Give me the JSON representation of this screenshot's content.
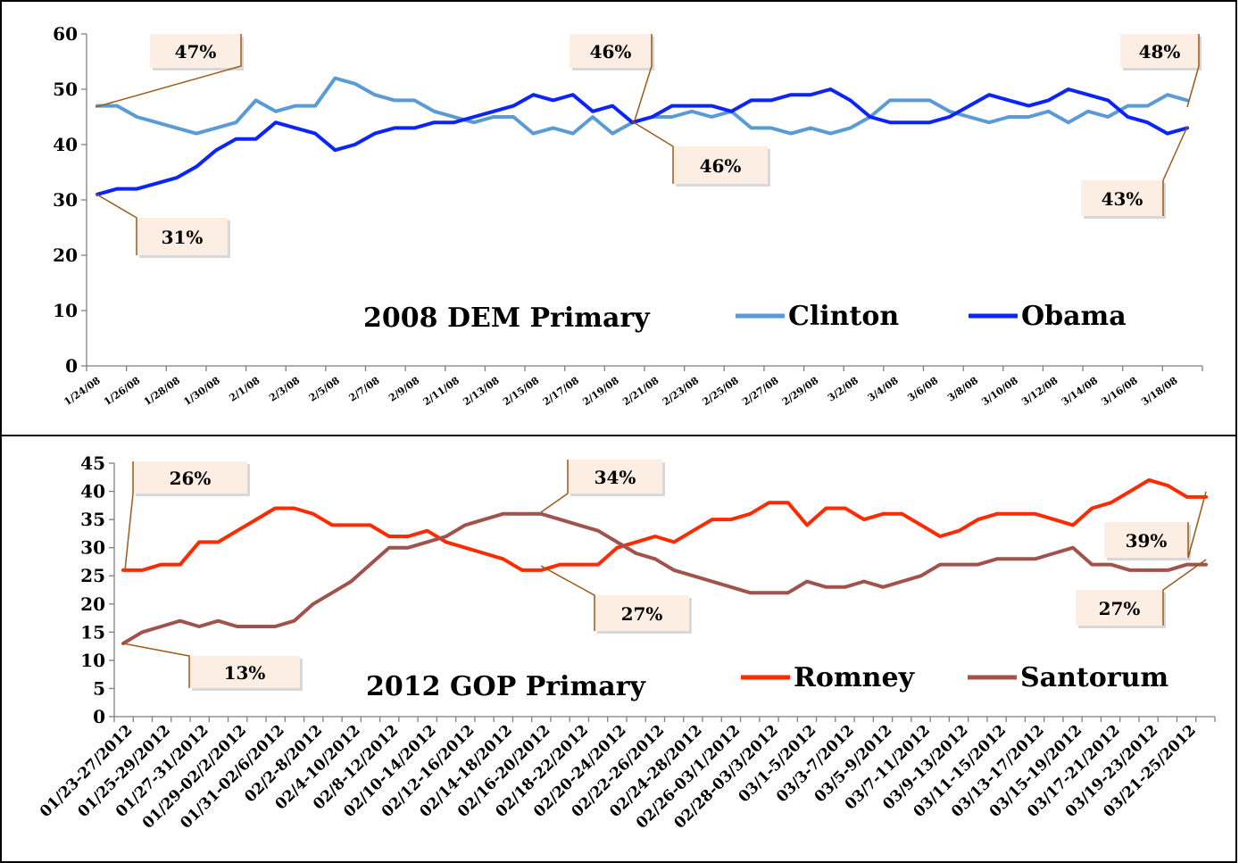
{
  "chart_data": [
    {
      "type": "line",
      "title": "2008 DEM Primary",
      "xlabel": "",
      "ylabel": "",
      "ylim": [
        0,
        60
      ],
      "yticks": [
        0,
        10,
        20,
        30,
        40,
        50,
        60
      ],
      "grid": false,
      "legend": "bottom-right",
      "x_tick_labels": [
        "1/24/08",
        "1/26/08",
        "1/28/08",
        "1/30/08",
        "2/1/08",
        "2/3/08",
        "2/5/08",
        "2/7/08",
        "2/9/08",
        "2/11/08",
        "2/13/08",
        "2/15/08",
        "2/17/08",
        "2/19/08",
        "2/21/08",
        "2/23/08",
        "2/25/08",
        "2/27/08",
        "2/29/08",
        "3/2/08",
        "3/4/08",
        "3/6/08",
        "3/8/08",
        "3/10/08",
        "3/12/08",
        "3/14/08",
        "3/16/08",
        "3/18/08"
      ],
      "series": [
        {
          "name": "Clinton",
          "color": "#5b9bd5",
          "values": [
            47,
            47,
            45,
            44,
            43,
            42,
            43,
            44,
            48,
            46,
            47,
            47,
            52,
            51,
            49,
            48,
            48,
            46,
            45,
            44,
            45,
            45,
            42,
            43,
            42,
            45,
            42,
            44,
            45,
            45,
            46,
            45,
            46,
            43,
            43,
            42,
            43,
            42,
            43,
            45,
            48,
            48,
            48,
            46,
            45,
            44,
            45,
            45,
            46,
            44,
            46,
            45,
            47,
            47,
            49,
            48
          ]
        },
        {
          "name": "Obama",
          "color": "#0b24fb",
          "values": [
            31,
            32,
            32,
            33,
            34,
            36,
            39,
            41,
            41,
            44,
            43,
            42,
            39,
            40,
            42,
            43,
            43,
            44,
            44,
            45,
            46,
            47,
            49,
            48,
            49,
            46,
            47,
            44,
            45,
            47,
            47,
            47,
            46,
            48,
            48,
            49,
            49,
            50,
            48,
            45,
            44,
            44,
            44,
            45,
            47,
            49,
            48,
            47,
            48,
            50,
            49,
            48,
            45,
            44,
            42,
            43
          ]
        }
      ],
      "callouts": [
        {
          "text": "47%"
        },
        {
          "text": "31%"
        },
        {
          "text": "46%"
        },
        {
          "text": "46%"
        },
        {
          "text": "48%"
        },
        {
          "text": "43%"
        }
      ]
    },
    {
      "type": "line",
      "title": "2012 GOP Primary",
      "xlabel": "",
      "ylabel": "",
      "ylim": [
        0,
        45
      ],
      "yticks": [
        0,
        5,
        10,
        15,
        20,
        25,
        30,
        35,
        40,
        45
      ],
      "grid": false,
      "legend": "bottom-right",
      "x_tick_labels": [
        "01/23-27/2012",
        "01/25-29/2012",
        "01/27-31/2012",
        "01/29-02/2/2012",
        "01/31-02/6/2012",
        "02/2-8/2012",
        "02/4-10/2012",
        "02/8-12/2012",
        "02/10-14/2012",
        "02/12-16/2012",
        "02/14-18/2012",
        "02/16-20/2012",
        "02/18-22/2012",
        "02/20-24/2012",
        "02/22-26/2012",
        "02/24-28/2012",
        "02/26-03/1/2012",
        "02/28-03/3/2012",
        "03/1-5/2012",
        "03/3-7/2012",
        "03/5-9/2012",
        "03/7-11/2012",
        "03/9-13/2012",
        "03/11-15/2012",
        "03/13-17/2012",
        "03/15-19/2012",
        "03/17-21/2012",
        "03/19-23/2012",
        "03/21-25/2012"
      ],
      "series": [
        {
          "name": "Romney",
          "color": "#ff2a00",
          "values": [
            26,
            26,
            27,
            27,
            31,
            31,
            33,
            35,
            37,
            37,
            36,
            34,
            34,
            34,
            32,
            32,
            33,
            31,
            30,
            29,
            28,
            26,
            26,
            27,
            27,
            27,
            30,
            31,
            32,
            31,
            33,
            35,
            35,
            36,
            38,
            38,
            34,
            37,
            37,
            35,
            36,
            36,
            34,
            32,
            33,
            35,
            36,
            36,
            36,
            35,
            34,
            37,
            38,
            40,
            42,
            41,
            39,
            39
          ]
        },
        {
          "name": "Santorum",
          "color": "#a0524d",
          "values": [
            13,
            15,
            16,
            17,
            16,
            17,
            16,
            16,
            16,
            17,
            20,
            22,
            24,
            27,
            30,
            30,
            31,
            32,
            34,
            35,
            36,
            36,
            36,
            35,
            34,
            33,
            31,
            29,
            28,
            26,
            25,
            24,
            23,
            22,
            22,
            22,
            24,
            23,
            23,
            24,
            23,
            24,
            25,
            27,
            27,
            27,
            28,
            28,
            28,
            29,
            30,
            27,
            27,
            26,
            26,
            26,
            27,
            27
          ]
        }
      ],
      "callouts": [
        {
          "text": "26%"
        },
        {
          "text": "13%"
        },
        {
          "text": "34%"
        },
        {
          "text": "27%"
        },
        {
          "text": "39%"
        },
        {
          "text": "27%"
        }
      ]
    }
  ]
}
